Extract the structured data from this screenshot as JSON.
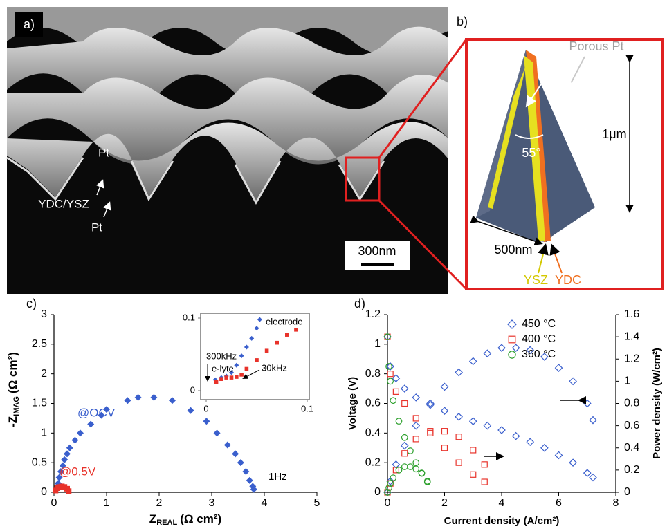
{
  "panels": {
    "a": {
      "label": "a)",
      "annotations": [
        "Pt",
        "YDC/YSZ",
        "Pt"
      ],
      "scale_bar": "300nm"
    },
    "b": {
      "label": "b)",
      "porous": "Porous Pt",
      "height": "1μm",
      "angle": "55°",
      "width": "500nm",
      "ysz": "YSZ",
      "ydc": "YDC"
    }
  },
  "chart_data": [
    {
      "type": "scatter",
      "panel_label": "c)",
      "x_label": {
        "main": "Z",
        "sub": "REAL",
        "unit": "(Ω cm²)"
      },
      "y_label": {
        "main": "-Z",
        "sub": "IMAG",
        "unit": "(Ω cm²)"
      },
      "xlim": [
        0,
        5
      ],
      "ylim": [
        0,
        3
      ],
      "xticks": [
        0,
        1,
        2,
        3,
        4,
        5
      ],
      "yticks": [
        0,
        0.5,
        1,
        1.5,
        2,
        2.5,
        3
      ],
      "series": [
        {
          "name": "@OCV",
          "color": "#3a5fcd",
          "marker": "diamond",
          "x": [
            0.05,
            0.08,
            0.1,
            0.13,
            0.17,
            0.2,
            0.25,
            0.3,
            0.4,
            0.5,
            0.7,
            0.9,
            1.0,
            1.4,
            1.6,
            1.9,
            2.25,
            2.6,
            2.9,
            3.1,
            3.3,
            3.45,
            3.55,
            3.65,
            3.72,
            3.78,
            3.8
          ],
          "values": [
            0.05,
            0.15,
            0.25,
            0.35,
            0.45,
            0.55,
            0.65,
            0.75,
            0.88,
            1.0,
            1.15,
            1.3,
            1.4,
            1.55,
            1.6,
            1.6,
            1.55,
            1.38,
            1.2,
            1.0,
            0.8,
            0.65,
            0.5,
            0.35,
            0.2,
            0.1,
            0.05
          ]
        },
        {
          "name": "@0.5V",
          "color": "#e8322a",
          "marker": "square",
          "x": [
            0.03,
            0.06,
            0.1,
            0.15,
            0.2,
            0.25,
            0.28
          ],
          "values": [
            0.03,
            0.07,
            0.09,
            0.1,
            0.09,
            0.06,
            0.02
          ]
        }
      ],
      "annotations": [
        "1Hz"
      ],
      "inset": {
        "xlim": [
          0,
          0.1
        ],
        "ylim": [
          0,
          0.1
        ],
        "xticks": [
          0,
          0.1
        ],
        "yticks": [
          0,
          0.1
        ],
        "series": [
          {
            "color": "#3a5fcd",
            "marker": "diamond",
            "x": [
              0.009,
              0.015,
              0.02,
              0.025,
              0.03,
              0.035,
              0.04,
              0.045,
              0.05,
              0.053
            ],
            "values": [
              0.015,
              0.018,
              0.02,
              0.025,
              0.035,
              0.048,
              0.06,
              0.072,
              0.086,
              0.098
            ]
          },
          {
            "color": "#e8322a",
            "marker": "square",
            "x": [
              0.01,
              0.015,
              0.02,
              0.025,
              0.03,
              0.035,
              0.04,
              0.05,
              0.06,
              0.07,
              0.08,
              0.089
            ],
            "values": [
              0.012,
              0.016,
              0.018,
              0.018,
              0.019,
              0.022,
              0.03,
              0.042,
              0.055,
              0.066,
              0.077,
              0.084
            ]
          }
        ],
        "annotations": [
          "electrode",
          "300kHz",
          "e-lyte",
          "30kHz"
        ]
      }
    },
    {
      "type": "scatter",
      "panel_label": "d)",
      "x_label": "Current density (A/cm²)",
      "y_label": "Voltage (V)",
      "y2_label": "Power density (W/cm²)",
      "xlim": [
        0,
        8
      ],
      "ylim": [
        0,
        1.2
      ],
      "y2lim": [
        0,
        1.6
      ],
      "xticks": [
        0,
        2,
        4,
        6,
        8
      ],
      "yticks": [
        0,
        0.2,
        0.4,
        0.6,
        0.8,
        1,
        1.2
      ],
      "y2ticks": [
        0,
        0.2,
        0.4,
        0.6,
        0.8,
        1,
        1.2,
        1.4,
        1.6
      ],
      "legend": "upper right",
      "hollow_markers": true,
      "series": [
        {
          "name": "450 °C",
          "color": "#3a5fcd",
          "marker": "diamond",
          "x": [
            0,
            0.1,
            0.3,
            0.6,
            1,
            1.5,
            2,
            2.5,
            3,
            3.5,
            4,
            4.5,
            5,
            5.5,
            6,
            6.5,
            7,
            7.2
          ],
          "values": [
            1.05,
            0.85,
            0.77,
            0.7,
            0.64,
            0.59,
            0.55,
            0.51,
            0.48,
            0.45,
            0.42,
            0.38,
            0.34,
            0.3,
            0.25,
            0.2,
            0.13,
            0.1
          ]
        },
        {
          "name": "400 °C",
          "color": "#e8322a",
          "marker": "square",
          "x": [
            0,
            0.1,
            0.3,
            0.6,
            1,
            1.5,
            2,
            2.5,
            3,
            3.4
          ],
          "values": [
            1.05,
            0.8,
            0.68,
            0.6,
            0.5,
            0.4,
            0.3,
            0.2,
            0.12,
            0.07
          ]
        },
        {
          "name": "360 °C",
          "color": "#2ca02c",
          "marker": "circle",
          "x": [
            0,
            0.05,
            0.1,
            0.2,
            0.4,
            0.6,
            0.8,
            1,
            1.2,
            1.4
          ],
          "values": [
            1.05,
            0.85,
            0.75,
            0.62,
            0.48,
            0.37,
            0.28,
            0.2,
            0.13,
            0.07
          ]
        },
        {
          "axis": "y2",
          "color": "#3a5fcd",
          "marker": "diamond",
          "x": [
            0,
            0.1,
            0.3,
            0.6,
            1,
            1.5,
            2,
            2.5,
            3,
            3.5,
            4,
            4.5,
            5,
            5.5,
            6,
            6.5,
            7,
            7.2
          ],
          "values": [
            0,
            0.1,
            0.25,
            0.42,
            0.6,
            0.8,
            0.95,
            1.08,
            1.18,
            1.25,
            1.3,
            1.3,
            1.28,
            1.22,
            1.12,
            1.0,
            0.8,
            0.65
          ]
        },
        {
          "axis": "y2",
          "color": "#e8322a",
          "marker": "square",
          "x": [
            0,
            0.1,
            0.3,
            0.6,
            1,
            1.5,
            2,
            2.5,
            3,
            3.4
          ],
          "values": [
            0,
            0.08,
            0.2,
            0.35,
            0.48,
            0.55,
            0.55,
            0.5,
            0.38,
            0.25
          ]
        },
        {
          "axis": "y2",
          "color": "#2ca02c",
          "marker": "circle",
          "x": [
            0,
            0.05,
            0.1,
            0.2,
            0.4,
            0.6,
            0.8,
            1,
            1.2,
            1.4
          ],
          "values": [
            0,
            0.04,
            0.08,
            0.13,
            0.2,
            0.23,
            0.23,
            0.21,
            0.17,
            0.1
          ]
        }
      ]
    }
  ]
}
